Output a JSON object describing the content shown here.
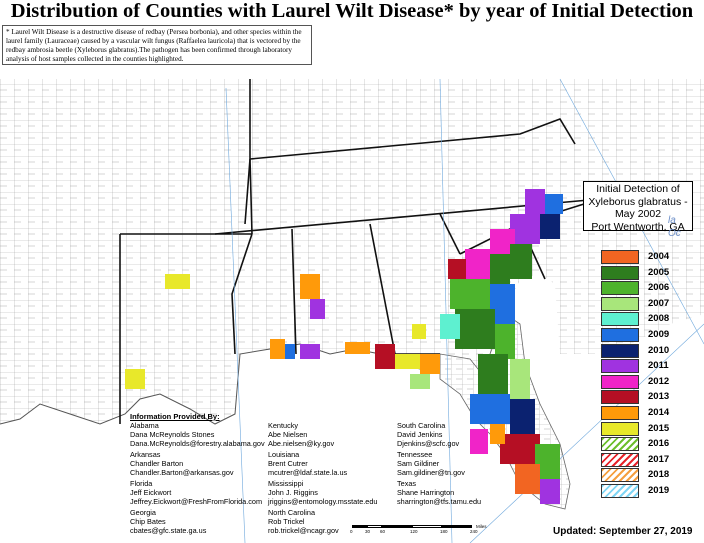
{
  "title": "Distribution of Counties with Laurel Wilt Disease* by year of Initial Detection",
  "note": "* Laurel Wilt Disease is a destructive disease of redbay (Persea borbonia), and other species within the laurel family (Lauraceae) caused by a vascular wilt fungus (Raffaelea lauricola) that is vectored by the redbay ambrosia beetle (Xyleborus glabratus).The pathogen has been confirmed through laboratory analysis of host samples collected in the counties highlighted.",
  "callout": {
    "lines": [
      "Initial Detection of",
      "Xyleborus glabratus -",
      "May 2002",
      "Port Wentworth, GA"
    ]
  },
  "ocean_label": [
    "la",
    "Oc"
  ],
  "legend": [
    {
      "year": "2004",
      "color": "#f26522",
      "pattern": "solid"
    },
    {
      "year": "2005",
      "color": "#2e7d1e",
      "pattern": "solid"
    },
    {
      "year": "2006",
      "color": "#4db32c",
      "pattern": "solid"
    },
    {
      "year": "2007",
      "color": "#a8e67b",
      "pattern": "solid"
    },
    {
      "year": "2008",
      "color": "#5ef0d0",
      "pattern": "solid"
    },
    {
      "year": "2009",
      "color": "#1f6fe0",
      "pattern": "solid"
    },
    {
      "year": "2010",
      "color": "#0b2270",
      "pattern": "solid"
    },
    {
      "year": "2011",
      "color": "#a033e0",
      "pattern": "solid"
    },
    {
      "year": "2012",
      "color": "#f024c8",
      "pattern": "solid"
    },
    {
      "year": "2013",
      "color": "#b50f24",
      "pattern": "solid"
    },
    {
      "year": "2014",
      "color": "#ff9a0a",
      "pattern": "solid"
    },
    {
      "year": "2015",
      "color": "#e8e82a",
      "pattern": "solid"
    },
    {
      "year": "2016",
      "color": "#6dbf2d",
      "pattern": "hatch"
    },
    {
      "year": "2017",
      "color": "#e8242b",
      "pattern": "hatch"
    },
    {
      "year": "2018",
      "color": "#f5a040",
      "pattern": "hatch"
    },
    {
      "year": "2019",
      "color": "#7fd6f5",
      "pattern": "hatch"
    }
  ],
  "providers": {
    "heading": "Information Provided By:",
    "columns": [
      [
        {
          "state": "Alabama",
          "name": "Dana McReynolds Stones",
          "email": "Dana.McReynolds@forestry.alabama.gov"
        },
        {
          "state": "Arkansas",
          "name": "Chandler Barton",
          "email": "Chandler.Barton@arkansas.gov"
        },
        {
          "state": "Florida",
          "name": "Jeff Eickwort",
          "email": "Jeffrey.Eickwort@FreshFromFlorida.com"
        },
        {
          "state": "Georgia",
          "name": "Chip Bates",
          "email": "cbates@gfc.state.ga.us"
        }
      ],
      [
        {
          "state": "Kentucky",
          "name": "Abe Nielsen",
          "email": "Abe.nielsen@ky.gov"
        },
        {
          "state": "Louisiana",
          "name": "Brent Cutrer",
          "email": "mcutrer@ldaf.state.la.us"
        },
        {
          "state": "Mississippi",
          "name": "John J. Riggins",
          "email": "jriggins@entomology.msstate.edu"
        },
        {
          "state": "North Carolina",
          "name": "Rob Trickel",
          "email": "rob.trickel@ncagr.gov"
        }
      ],
      [
        {
          "state": "South Carolina",
          "name": "David Jenkins",
          "email": "Djenkins@scfc.gov"
        },
        {
          "state": "Tennessee",
          "name": "Sam Gildiner",
          "email": "Sam.gildiner@tn.gov"
        },
        {
          "state": "Texas",
          "name": "Shane Harrington",
          "email": "sharrington@tfs.tamu.edu"
        }
      ]
    ]
  },
  "scale": {
    "ticks": [
      "0",
      "30",
      "60",
      "120",
      "180",
      "240"
    ],
    "unit": "Miles"
  },
  "updated": "Updated: September 27, 2019"
}
